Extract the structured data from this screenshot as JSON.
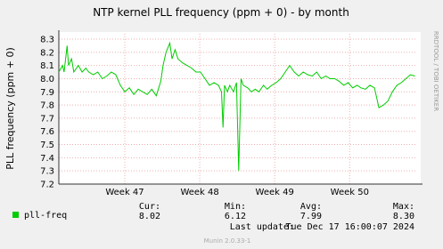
{
  "chart_data": {
    "type": "line",
    "title": "NTP kernel PLL frequency (ppm + 0) - by month",
    "y_label": "PLL frequency (ppm + 0)",
    "x": [
      46.12,
      46.17,
      46.19,
      46.23,
      46.25,
      46.29,
      46.32,
      46.38,
      46.43,
      46.48,
      46.52,
      46.58,
      46.64,
      46.7,
      46.76,
      46.82,
      46.88,
      46.94,
      47.0,
      47.06,
      47.12,
      47.18,
      47.24,
      47.3,
      47.36,
      47.42,
      47.48,
      47.51,
      47.55,
      47.6,
      47.63,
      47.67,
      47.71,
      47.77,
      47.83,
      47.89,
      47.95,
      48.01,
      48.07,
      48.13,
      48.19,
      48.25,
      48.29,
      48.31,
      48.33,
      48.37,
      48.4,
      48.45,
      48.49,
      48.52,
      48.55,
      48.58,
      48.64,
      48.69,
      48.74,
      48.79,
      48.85,
      48.9,
      48.96,
      49.02,
      49.08,
      49.14,
      49.2,
      49.26,
      49.32,
      49.38,
      49.44,
      49.5,
      49.56,
      49.62,
      49.68,
      49.74,
      49.8,
      49.86,
      49.92,
      49.98,
      50.04,
      50.1,
      50.15,
      50.21,
      50.27,
      50.33,
      50.39,
      50.45,
      50.51,
      50.57,
      50.63,
      50.69,
      50.75,
      50.81,
      50.87
    ],
    "series": [
      {
        "name": "pll-freq",
        "color": "#00cc00",
        "values": [
          8.05,
          8.1,
          8.05,
          8.25,
          8.1,
          8.15,
          8.05,
          8.1,
          8.05,
          8.08,
          8.05,
          8.03,
          8.05,
          8.0,
          8.02,
          8.05,
          8.03,
          7.95,
          7.9,
          7.93,
          7.88,
          7.92,
          7.9,
          7.88,
          7.92,
          7.87,
          7.98,
          8.1,
          8.2,
          8.27,
          8.15,
          8.22,
          8.15,
          8.12,
          8.1,
          8.08,
          8.05,
          8.05,
          8.0,
          7.95,
          7.97,
          7.95,
          7.9,
          7.63,
          7.95,
          7.9,
          7.95,
          7.9,
          7.97,
          7.3,
          8.0,
          7.95,
          7.93,
          7.9,
          7.92,
          7.9,
          7.95,
          7.92,
          7.95,
          7.97,
          8.0,
          8.05,
          8.1,
          8.05,
          8.02,
          8.05,
          8.03,
          8.02,
          8.05,
          8.0,
          8.02,
          8.0,
          8.0,
          7.98,
          7.95,
          7.97,
          7.93,
          7.95,
          7.93,
          7.92,
          7.95,
          7.93,
          7.78,
          7.8,
          7.83,
          7.9,
          7.95,
          7.97,
          8.0,
          8.03,
          8.02
        ]
      }
    ],
    "xlim": [
      46.12,
      50.9
    ],
    "xticks": [
      {
        "value": 47,
        "label": "Week 47"
      },
      {
        "value": 48,
        "label": "Week 48"
      },
      {
        "value": 49,
        "label": "Week 49"
      },
      {
        "value": 50,
        "label": "Week 50"
      }
    ],
    "ylim": [
      7.2,
      8.3
    ],
    "yticks": [
      7.2,
      7.3,
      7.4,
      7.5,
      7.6,
      7.7,
      7.8,
      7.9,
      {
        "value": 8,
        "label": "8.0"
      },
      8.1,
      8.2,
      8.3
    ],
    "grid": true,
    "legend": {
      "headers": [
        "Cur:",
        "Min:",
        "Avg:",
        "Max:"
      ],
      "values": [
        "8.02",
        "6.12",
        "7.99",
        "8.30"
      ]
    },
    "last_update_label": "Last update:",
    "last_update": "Tue Dec 17 16:00:07 2024",
    "watermark": "RRDTOOL / TOBI OETIKER",
    "version": "Munin 2.0.33-1"
  }
}
